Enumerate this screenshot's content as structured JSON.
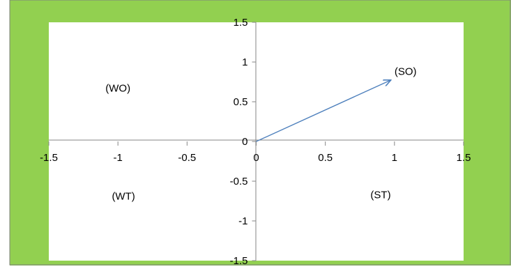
{
  "chart_data": {
    "type": "line",
    "title": "",
    "xlabel": "",
    "ylabel": "",
    "xlim": [
      -1.5,
      1.5
    ],
    "ylim": [
      -1.5,
      1.5
    ],
    "x_ticks": [
      "-1.5",
      "-1",
      "-0.5",
      "0",
      "0.5",
      "1",
      "1.5"
    ],
    "y_ticks": [
      "1.5",
      "1",
      "0.5",
      "0",
      "-0.5",
      "-1",
      "-1.5"
    ],
    "grid": false,
    "legend": "none",
    "series": [
      {
        "x": [
          0,
          0.97
        ],
        "y": [
          0,
          0.77
        ],
        "style": "arrow"
      }
    ],
    "annotations": [
      {
        "text": "(SO)",
        "x": 1.08,
        "y": 0.88
      },
      {
        "text": "(WO)",
        "x": -1.0,
        "y": 0.67
      },
      {
        "text": "(WT)",
        "x": -0.96,
        "y": -0.69
      },
      {
        "text": "(ST)",
        "x": 0.9,
        "y": -0.67
      }
    ]
  },
  "colors": {
    "frame_green": "#92d050",
    "plot_background": "#ffffff",
    "vector": "#4f81bd",
    "axis": "#868686"
  }
}
